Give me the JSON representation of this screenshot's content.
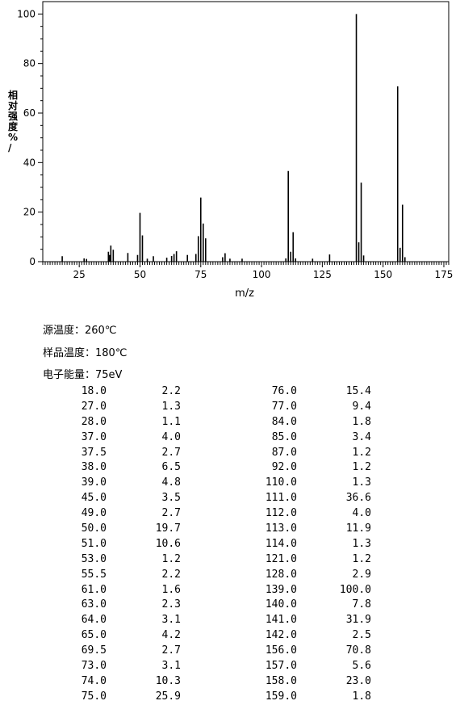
{
  "chart_data": {
    "type": "bar",
    "ylabel": "相对强度\n%/",
    "xlabel": "m/z",
    "xlim": [
      10,
      177
    ],
    "ylim": [
      0,
      105
    ],
    "x_ticks": [
      25,
      50,
      75,
      100,
      125,
      150,
      175
    ],
    "y_ticks": [
      0,
      20,
      40,
      60,
      80,
      100
    ],
    "x": [
      18.0,
      27.0,
      28.0,
      37.0,
      37.5,
      38.0,
      39.0,
      45.0,
      49.0,
      50.0,
      51.0,
      53.0,
      55.5,
      61.0,
      63.0,
      64.0,
      65.0,
      69.5,
      73.0,
      74.0,
      75.0,
      76.0,
      77.0,
      84.0,
      85.0,
      87.0,
      92.0,
      110.0,
      111.0,
      112.0,
      113.0,
      114.0,
      121.0,
      128.0,
      139.0,
      140.0,
      141.0,
      142.0,
      156.0,
      157.0,
      158.0,
      159.0
    ],
    "values": [
      2.2,
      1.3,
      1.1,
      4.0,
      2.7,
      6.5,
      4.8,
      3.5,
      2.7,
      19.7,
      10.6,
      1.2,
      2.2,
      1.6,
      2.3,
      3.1,
      4.2,
      2.7,
      3.1,
      10.3,
      25.9,
      15.4,
      9.4,
      1.8,
      3.4,
      1.2,
      1.2,
      1.3,
      36.6,
      4.0,
      11.9,
      1.3,
      1.2,
      2.9,
      100.0,
      7.8,
      31.9,
      2.5,
      70.8,
      5.6,
      23.0,
      1.8
    ]
  },
  "conditions": [
    "源温度：260℃",
    "样品温度：180℃",
    "电子能量：75eV"
  ],
  "table": {
    "rows": [
      [
        "18.0",
        "2.2",
        "76.0",
        "15.4"
      ],
      [
        "27.0",
        "1.3",
        "77.0",
        "9.4"
      ],
      [
        "28.0",
        "1.1",
        "84.0",
        "1.8"
      ],
      [
        "37.0",
        "4.0",
        "85.0",
        "3.4"
      ],
      [
        "37.5",
        "2.7",
        "87.0",
        "1.2"
      ],
      [
        "38.0",
        "6.5",
        "92.0",
        "1.2"
      ],
      [
        "39.0",
        "4.8",
        "110.0",
        "1.3"
      ],
      [
        "45.0",
        "3.5",
        "111.0",
        "36.6"
      ],
      [
        "49.0",
        "2.7",
        "112.0",
        "4.0"
      ],
      [
        "50.0",
        "19.7",
        "113.0",
        "11.9"
      ],
      [
        "51.0",
        "10.6",
        "114.0",
        "1.3"
      ],
      [
        "53.0",
        "1.2",
        "121.0",
        "1.2"
      ],
      [
        "55.5",
        "2.2",
        "128.0",
        "2.9"
      ],
      [
        "61.0",
        "1.6",
        "139.0",
        "100.0"
      ],
      [
        "63.0",
        "2.3",
        "140.0",
        "7.8"
      ],
      [
        "64.0",
        "3.1",
        "141.0",
        "31.9"
      ],
      [
        "65.0",
        "4.2",
        "142.0",
        "2.5"
      ],
      [
        "69.5",
        "2.7",
        "156.0",
        "70.8"
      ],
      [
        "73.0",
        "3.1",
        "157.0",
        "5.6"
      ],
      [
        "74.0",
        "10.3",
        "158.0",
        "23.0"
      ],
      [
        "75.0",
        "25.9",
        "159.0",
        "1.8"
      ]
    ]
  }
}
